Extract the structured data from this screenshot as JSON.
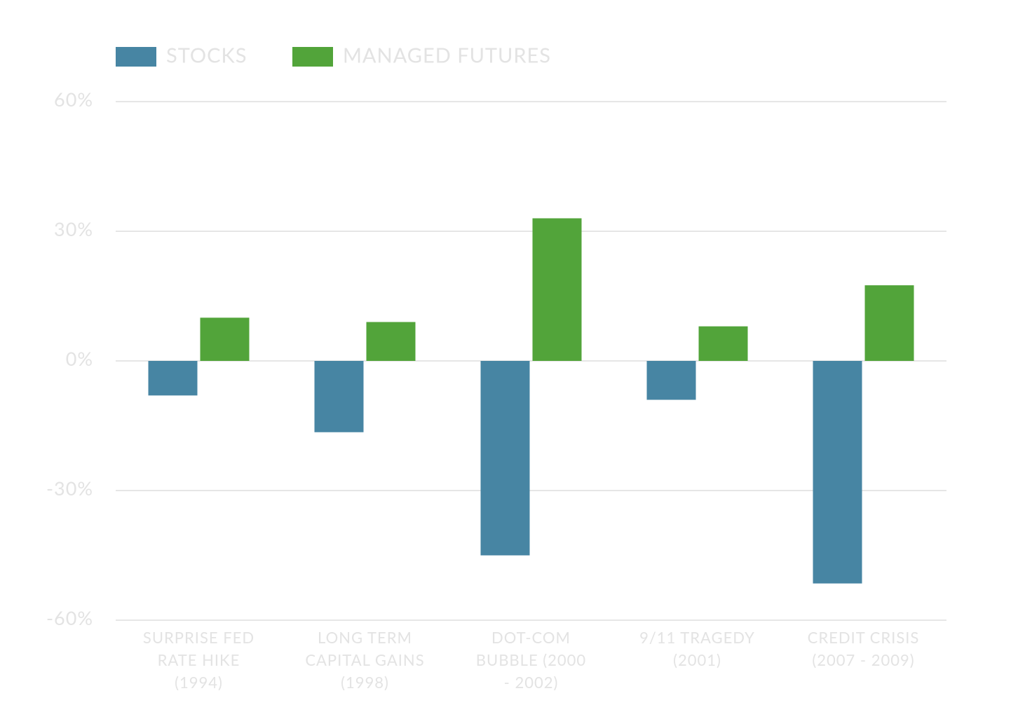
{
  "chart_data": {
    "type": "bar",
    "categories": [
      "SURPRISE FED RATE HIKE (1994)",
      "LONG TERM CAPITAL GAINS (1998)",
      "DOT-COM BUBBLE (2000 - 2002)",
      "9/11 TRAGEDY (2001)",
      "CREDIT CRISIS (2007 - 2009)"
    ],
    "series": [
      {
        "name": "STOCKS",
        "color": "#4785a3",
        "values": [
          -8,
          -16.5,
          -45,
          -9,
          -51.5
        ]
      },
      {
        "name": "MANAGED FUTURES",
        "color": "#52a43a",
        "values": [
          10,
          9,
          33,
          8,
          17.5
        ]
      }
    ],
    "ylim": [
      -60,
      60
    ],
    "yticks": [
      {
        "value": 60,
        "label": "60%"
      },
      {
        "value": 30,
        "label": "30%"
      },
      {
        "value": 0,
        "label": "0%"
      },
      {
        "value": -30,
        "label": "-30%"
      },
      {
        "value": -60,
        "label": "-60%"
      }
    ],
    "grid": true
  }
}
